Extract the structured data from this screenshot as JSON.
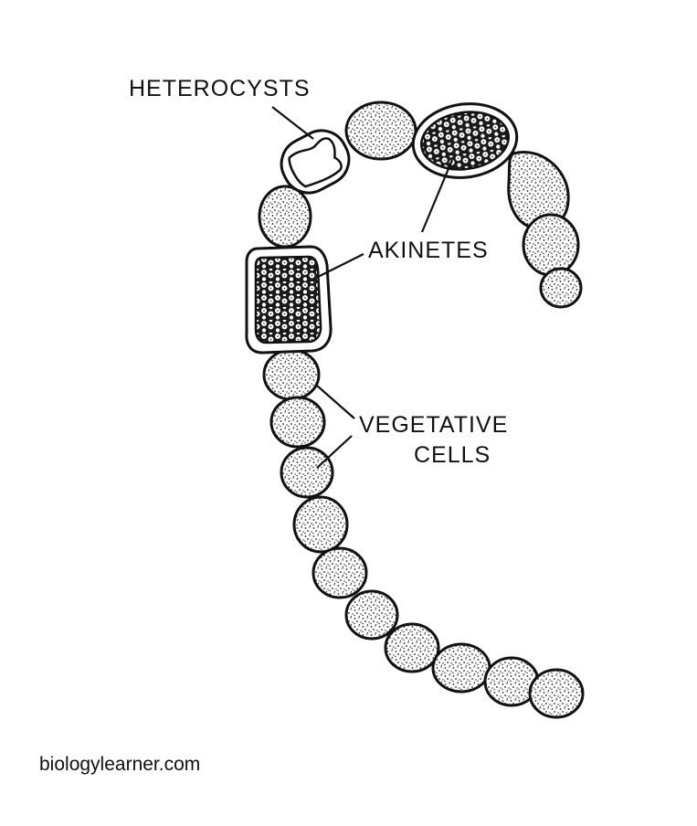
{
  "diagram": {
    "labels": {
      "heterocysts": "HETEROCYSTS",
      "akinetes": "AKINETES",
      "vegetative_line1": "VEGETATIVE",
      "vegetative_line2": "CELLS"
    },
    "watermark": "biologylearner.com"
  }
}
